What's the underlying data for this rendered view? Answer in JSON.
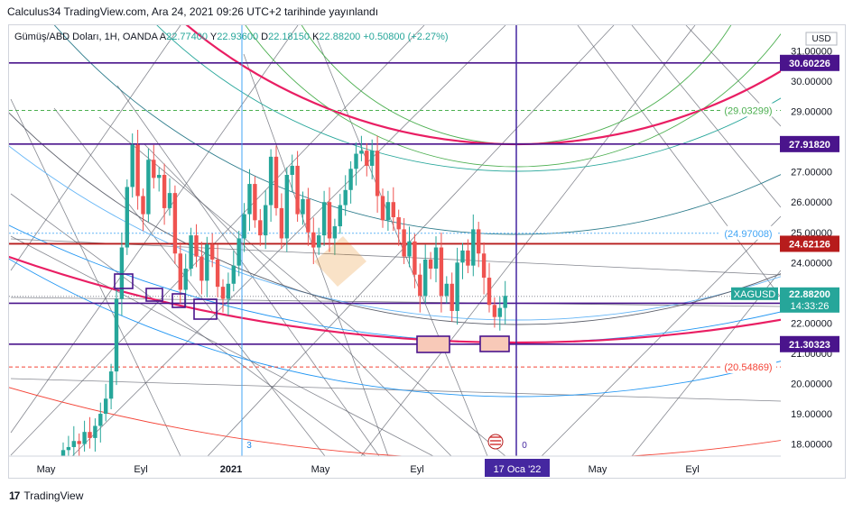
{
  "header": {
    "published": "Calculus34 TradingView.com, Ara 24, 2021 09:26 UTC+2 tarihinde yayınlandı"
  },
  "legend": {
    "symbol": "Gümüş/ABD Doları, 1H, OANDA",
    "o_label": "A",
    "o_value": "22.77400",
    "h_label": "Y",
    "h_value": "22.93600",
    "l_label": "D",
    "l_value": "22.18150",
    "c_label": "K",
    "c_value": "22.88200",
    "change": "+0.50800 (+2.27%)"
  },
  "footer": {
    "brand": "TradingView",
    "logo": "17"
  },
  "colors": {
    "up": "#26a69a",
    "down": "#ef5350",
    "purple": "#4a148c",
    "darkred": "#b71c1c",
    "pink": "#e91e63",
    "axis": "#131722",
    "fib_green": "#4caf50",
    "fib_blue": "#2196f3",
    "fib_red": "#f44336"
  },
  "chart_data": {
    "type": "candlestick",
    "symbol": "XAGUSD",
    "currency": "USD",
    "y_range": [
      17.6,
      31.6
    ],
    "x_labels": [
      "May",
      "Eyl",
      "2021",
      "May",
      "Eyl",
      "17 Oca '22",
      "May",
      "Eyl"
    ],
    "y_ticks": [
      "31.00000",
      "30.00000",
      "29.00000",
      "28.00000",
      "27.00000",
      "26.00000",
      "25.00000",
      "24.00000",
      "23.00000",
      "22.00000",
      "21.00000",
      "20.00000",
      "19.00000",
      "18.00000"
    ],
    "price_tags": [
      {
        "label": "30.60226",
        "value": 30.60226,
        "style": "purple"
      },
      {
        "label": "(29.03299)",
        "value": 29.03299,
        "style": "green-dashed"
      },
      {
        "label": "27.91820",
        "value": 27.9182,
        "style": "purple"
      },
      {
        "label": "(24.97008)",
        "value": 24.97008,
        "style": "blue-dotted"
      },
      {
        "label": "24.62126",
        "value": 24.62126,
        "style": "darkred"
      },
      {
        "label": "22.88200",
        "value": 22.882,
        "style": "current"
      },
      {
        "label": "22.65546",
        "value": 22.65546,
        "style": "purple"
      },
      {
        "label": "21.30323",
        "value": 21.30323,
        "style": "purple"
      },
      {
        "label": "(20.54869)",
        "value": 20.54869,
        "style": "red-dashed"
      }
    ],
    "current": {
      "symbol": "XAGUSD",
      "price": "22.88200",
      "countdown": "14:33:26"
    },
    "cursor_label": "17 Oca '22",
    "markers": [
      "3",
      "0"
    ],
    "candles_close": [
      17.8,
      17.9,
      18.1,
      18.0,
      18.4,
      18.2,
      18.6,
      19.0,
      19.5,
      20.4,
      22.8,
      24.5,
      26.5,
      27.9,
      26.2,
      25.6,
      27.4,
      26.8,
      26.9,
      25.8,
      26.3,
      24.3,
      23.1,
      23.8,
      24.9,
      24.2,
      23.4,
      24.6,
      24.1,
      23.2,
      22.8,
      23.3,
      23.9,
      24.8,
      25.6,
      26.6,
      25.4,
      24.9,
      25.9,
      27.5,
      25.8,
      24.8,
      26.9,
      27.2,
      25.6,
      26.1,
      25.0,
      24.5,
      24.9,
      26.0,
      24.8,
      25.2,
      25.9,
      26.4,
      27.1,
      27.6,
      27.7,
      27.2,
      27.7,
      26.2,
      25.4,
      26.0,
      25.5,
      25.1,
      24.2,
      24.7,
      23.6,
      22.9,
      24.1,
      23.8,
      24.5,
      22.9,
      23.3,
      22.4,
      24.0,
      24.4,
      23.9,
      25.1,
      24.3,
      23.5,
      22.6,
      22.2,
      22.5,
      22.9
    ]
  }
}
